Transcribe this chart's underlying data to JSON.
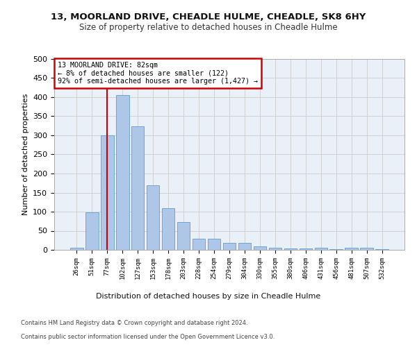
{
  "title1": "13, MOORLAND DRIVE, CHEADLE HULME, CHEADLE, SK8 6HY",
  "title2": "Size of property relative to detached houses in Cheadle Hulme",
  "xlabel": "Distribution of detached houses by size in Cheadle Hulme",
  "ylabel": "Number of detached properties",
  "bar_labels": [
    "26sqm",
    "51sqm",
    "77sqm",
    "102sqm",
    "127sqm",
    "153sqm",
    "178sqm",
    "203sqm",
    "228sqm",
    "254sqm",
    "279sqm",
    "304sqm",
    "330sqm",
    "355sqm",
    "380sqm",
    "406sqm",
    "431sqm",
    "456sqm",
    "481sqm",
    "507sqm",
    "532sqm"
  ],
  "bar_values": [
    5,
    98,
    300,
    405,
    323,
    170,
    110,
    73,
    30,
    30,
    18,
    18,
    10,
    6,
    4,
    4,
    6,
    1,
    5,
    5,
    2
  ],
  "bar_color": "#aec6e8",
  "bar_edge_color": "#5a9fd4",
  "annotation_line1": "13 MOORLAND DRIVE: 82sqm",
  "annotation_line2": "← 8% of detached houses are smaller (122)",
  "annotation_line3": "92% of semi-detached houses are larger (1,427) →",
  "annotation_box_color": "#ffffff",
  "annotation_box_edge_color": "#cc0000",
  "vline_color": "#cc0000",
  "ylim": [
    0,
    500
  ],
  "yticks": [
    0,
    50,
    100,
    150,
    200,
    250,
    300,
    350,
    400,
    450,
    500
  ],
  "grid_color": "#cccccc",
  "bg_color": "#eaf0f8",
  "footer1": "Contains HM Land Registry data © Crown copyright and database right 2024.",
  "footer2": "Contains public sector information licensed under the Open Government Licence v3.0."
}
